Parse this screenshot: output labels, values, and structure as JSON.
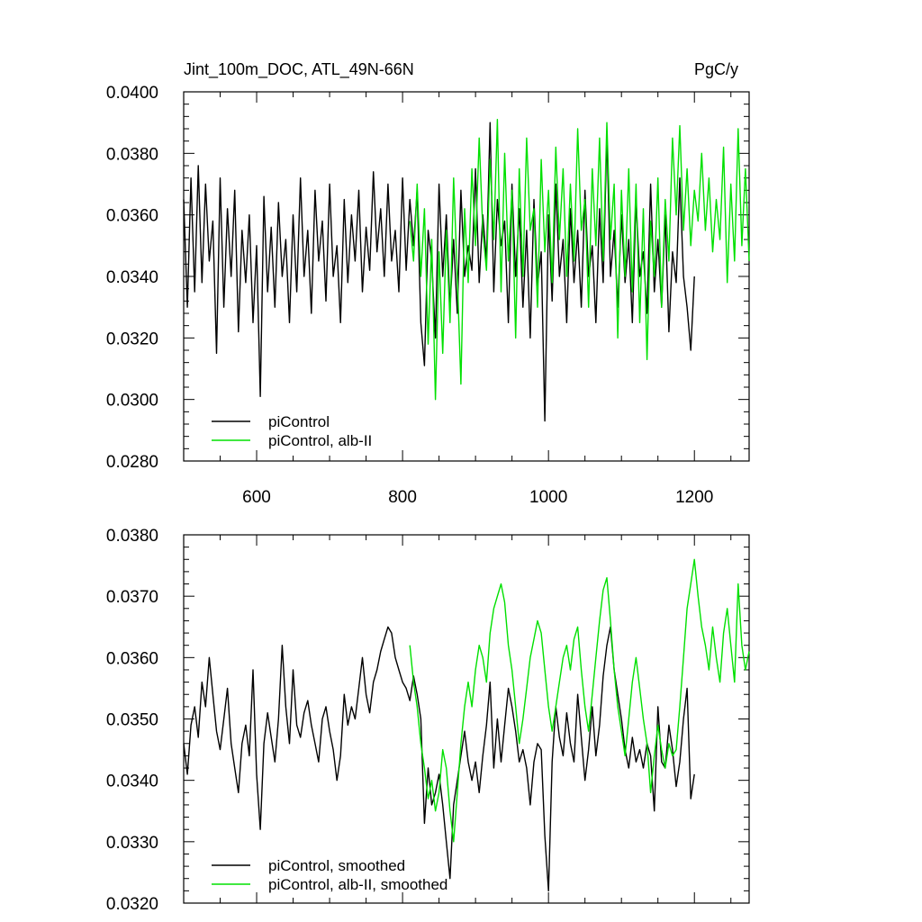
{
  "colors": {
    "control": "#000000",
    "alb": "#00e000"
  },
  "chart_data": [
    {
      "type": "line",
      "title": "Jint_100m_DOC, ATL_49N-66N",
      "unit_label": "PgC/y",
      "xlim": [
        500,
        1275
      ],
      "ylim": [
        0.028,
        0.04
      ],
      "x_ticks": [
        600,
        800,
        1000,
        1200
      ],
      "x_tick_labels": [
        "600",
        "800",
        "1000",
        "1200"
      ],
      "y_ticks": [
        0.028,
        0.03,
        0.032,
        0.034,
        0.036,
        0.038,
        0.04
      ],
      "y_tick_labels": [
        "0.0280",
        "0.0300",
        "0.0320",
        "0.0340",
        "0.0360",
        "0.0380",
        "0.0400"
      ],
      "legend": [
        "piControl",
        "piControl, alb-II"
      ],
      "series": [
        {
          "name": "piControl",
          "color": "#000000",
          "x": [
            500,
            505,
            510,
            515,
            520,
            525,
            530,
            535,
            540,
            545,
            550,
            555,
            560,
            565,
            570,
            575,
            580,
            585,
            590,
            595,
            600,
            605,
            610,
            615,
            620,
            625,
            630,
            635,
            640,
            645,
            650,
            655,
            660,
            665,
            670,
            675,
            680,
            685,
            690,
            695,
            700,
            705,
            710,
            715,
            720,
            725,
            730,
            735,
            740,
            745,
            750,
            755,
            760,
            765,
            770,
            775,
            780,
            785,
            790,
            795,
            800,
            805,
            810,
            815,
            820,
            825,
            830,
            835,
            840,
            845,
            850,
            855,
            860,
            865,
            870,
            875,
            880,
            885,
            890,
            895,
            900,
            905,
            910,
            915,
            920,
            925,
            930,
            935,
            940,
            945,
            950,
            955,
            960,
            965,
            970,
            975,
            980,
            985,
            990,
            995,
            1000,
            1005,
            1010,
            1015,
            1020,
            1025,
            1030,
            1035,
            1040,
            1045,
            1050,
            1055,
            1060,
            1065,
            1070,
            1075,
            1080,
            1085,
            1090,
            1095,
            1100,
            1105,
            1110,
            1115,
            1120,
            1125,
            1130,
            1135,
            1140,
            1145,
            1150,
            1155,
            1160,
            1165,
            1170,
            1175,
            1180,
            1185,
            1190,
            1195,
            1200
          ],
          "y": [
            0.0365,
            0.033,
            0.0372,
            0.0335,
            0.0376,
            0.0338,
            0.037,
            0.0345,
            0.0358,
            0.0315,
            0.0372,
            0.033,
            0.0362,
            0.034,
            0.0368,
            0.0322,
            0.0355,
            0.0338,
            0.036,
            0.0325,
            0.035,
            0.0301,
            0.0366,
            0.0335,
            0.0356,
            0.033,
            0.0364,
            0.034,
            0.0352,
            0.0325,
            0.036,
            0.0335,
            0.0372,
            0.034,
            0.0355,
            0.0328,
            0.0368,
            0.0345,
            0.0358,
            0.0332,
            0.037,
            0.034,
            0.035,
            0.0325,
            0.0365,
            0.0338,
            0.036,
            0.0345,
            0.0368,
            0.0335,
            0.0356,
            0.0342,
            0.0374,
            0.0348,
            0.0362,
            0.034,
            0.037,
            0.0345,
            0.0355,
            0.0335,
            0.0372,
            0.0342,
            0.0365,
            0.035,
            0.0368,
            0.0325,
            0.0311,
            0.0355,
            0.0345,
            0.032,
            0.037,
            0.034,
            0.036,
            0.033,
            0.0352,
            0.0328,
            0.0368,
            0.034,
            0.035,
            0.0342,
            0.0375,
            0.0338,
            0.036,
            0.0345,
            0.039,
            0.0335,
            0.0365,
            0.035,
            0.0358,
            0.0325,
            0.037,
            0.034,
            0.0362,
            0.033,
            0.0355,
            0.032,
            0.0365,
            0.0337,
            0.0348,
            0.0293,
            0.036,
            0.0332,
            0.037,
            0.034,
            0.0352,
            0.0325,
            0.0362,
            0.0338,
            0.0355,
            0.033,
            0.0368,
            0.034,
            0.035,
            0.0325,
            0.0362,
            0.0338,
            0.0386,
            0.034,
            0.0355,
            0.033,
            0.036,
            0.0338,
            0.0352,
            0.0325,
            0.0365,
            0.034,
            0.0348,
            0.0328,
            0.037,
            0.0335,
            0.0352,
            0.033,
            0.036,
            0.0322,
            0.0348,
            0.0338,
            0.0372,
            0.034,
            0.033,
            0.0316,
            0.034
          ]
        },
        {
          "name": "piControl, alb-II",
          "color": "#00e000",
          "x": [
            810,
            815,
            820,
            825,
            830,
            835,
            840,
            845,
            850,
            855,
            860,
            865,
            870,
            875,
            880,
            885,
            890,
            895,
            900,
            905,
            910,
            915,
            920,
            925,
            930,
            935,
            940,
            945,
            950,
            955,
            960,
            965,
            970,
            975,
            980,
            985,
            990,
            995,
            1000,
            1005,
            1010,
            1015,
            1020,
            1025,
            1030,
            1035,
            1040,
            1045,
            1050,
            1055,
            1060,
            1065,
            1070,
            1075,
            1080,
            1085,
            1090,
            1095,
            1100,
            1105,
            1110,
            1115,
            1120,
            1125,
            1130,
            1135,
            1140,
            1145,
            1150,
            1155,
            1160,
            1165,
            1170,
            1175,
            1180,
            1185,
            1190,
            1195,
            1200,
            1205,
            1210,
            1215,
            1220,
            1225,
            1230,
            1235,
            1240,
            1245,
            1250,
            1255,
            1260,
            1265,
            1270,
            1275
          ],
          "y": [
            0.0358,
            0.0345,
            0.037,
            0.034,
            0.0362,
            0.0318,
            0.0352,
            0.03,
            0.0348,
            0.0315,
            0.0355,
            0.0325,
            0.0372,
            0.034,
            0.0305,
            0.0362,
            0.0338,
            0.0375,
            0.035,
            0.0385,
            0.0355,
            0.0342,
            0.0378,
            0.0352,
            0.0391,
            0.0335,
            0.038,
            0.0345,
            0.0368,
            0.032,
            0.0375,
            0.034,
            0.0385,
            0.0355,
            0.0362,
            0.033,
            0.0378,
            0.0348,
            0.0368,
            0.0338,
            0.0382,
            0.0352,
            0.0375,
            0.034,
            0.037,
            0.0345,
            0.0388,
            0.0355,
            0.0365,
            0.033,
            0.0375,
            0.035,
            0.0385,
            0.0345,
            0.039,
            0.0352,
            0.037,
            0.032,
            0.0368,
            0.034,
            0.0375,
            0.0335,
            0.037,
            0.0325,
            0.0362,
            0.0313,
            0.0358,
            0.034,
            0.0372,
            0.033,
            0.0365,
            0.0345,
            0.0385,
            0.036,
            0.0389,
            0.0355,
            0.0375,
            0.035,
            0.0368,
            0.0358,
            0.038,
            0.0355,
            0.0372,
            0.0348,
            0.0365,
            0.0352,
            0.0382,
            0.0338,
            0.037,
            0.0345,
            0.0388,
            0.035,
            0.0375,
            0.0345
          ]
        }
      ]
    },
    {
      "type": "line",
      "xlim": [
        500,
        1275
      ],
      "ylim": [
        0.032,
        0.038
      ],
      "x_ticks": [
        600,
        800,
        1000,
        1200
      ],
      "y_ticks": [
        0.032,
        0.033,
        0.034,
        0.035,
        0.036,
        0.037,
        0.038
      ],
      "y_tick_labels": [
        "0.0320",
        "0.0330",
        "0.0340",
        "0.0350",
        "0.0360",
        "0.0370",
        "0.0380"
      ],
      "legend": [
        "piControl, smoothed",
        "piControl, alb-II, smoothed"
      ],
      "series": [
        {
          "name": "piControl, smoothed",
          "color": "#000000",
          "x": [
            500,
            505,
            510,
            515,
            520,
            525,
            530,
            535,
            540,
            545,
            550,
            555,
            560,
            565,
            570,
            575,
            580,
            585,
            590,
            595,
            600,
            605,
            610,
            615,
            620,
            625,
            630,
            635,
            640,
            645,
            650,
            655,
            660,
            665,
            670,
            675,
            680,
            685,
            690,
            695,
            700,
            705,
            710,
            715,
            720,
            725,
            730,
            735,
            740,
            745,
            750,
            755,
            760,
            765,
            770,
            775,
            780,
            785,
            790,
            795,
            800,
            805,
            810,
            815,
            820,
            825,
            830,
            835,
            840,
            845,
            850,
            855,
            860,
            865,
            870,
            875,
            880,
            885,
            890,
            895,
            900,
            905,
            910,
            915,
            920,
            925,
            930,
            935,
            940,
            945,
            950,
            955,
            960,
            965,
            970,
            975,
            980,
            985,
            990,
            995,
            1000,
            1005,
            1010,
            1015,
            1020,
            1025,
            1030,
            1035,
            1040,
            1045,
            1050,
            1055,
            1060,
            1065,
            1070,
            1075,
            1080,
            1085,
            1090,
            1095,
            1100,
            1105,
            1110,
            1115,
            1120,
            1125,
            1130,
            1135,
            1140,
            1145,
            1150,
            1155,
            1160,
            1165,
            1170,
            1175,
            1180,
            1185,
            1190,
            1195,
            1200
          ],
          "y": [
            0.0346,
            0.0341,
            0.0349,
            0.0352,
            0.0347,
            0.0356,
            0.0352,
            0.036,
            0.0354,
            0.0348,
            0.0345,
            0.035,
            0.0355,
            0.0346,
            0.0342,
            0.0338,
            0.0346,
            0.0349,
            0.0344,
            0.0358,
            0.0341,
            0.0332,
            0.0346,
            0.0351,
            0.0347,
            0.0343,
            0.035,
            0.0362,
            0.0352,
            0.0346,
            0.0358,
            0.0349,
            0.0347,
            0.0351,
            0.0353,
            0.0349,
            0.0346,
            0.0343,
            0.035,
            0.0352,
            0.0348,
            0.0345,
            0.034,
            0.0344,
            0.0354,
            0.0349,
            0.0352,
            0.035,
            0.0355,
            0.036,
            0.0354,
            0.0351,
            0.0356,
            0.0358,
            0.0361,
            0.0363,
            0.0365,
            0.0364,
            0.036,
            0.0358,
            0.0356,
            0.0355,
            0.0353,
            0.0357,
            0.0354,
            0.035,
            0.0333,
            0.0342,
            0.0336,
            0.0338,
            0.0341,
            0.0336,
            0.033,
            0.0324,
            0.0336,
            0.034,
            0.0344,
            0.0348,
            0.0343,
            0.034,
            0.0343,
            0.0338,
            0.0344,
            0.0349,
            0.0356,
            0.0342,
            0.035,
            0.0343,
            0.0349,
            0.0355,
            0.0352,
            0.0348,
            0.0343,
            0.0345,
            0.0342,
            0.0336,
            0.0343,
            0.0346,
            0.0345,
            0.0331,
            0.0322,
            0.0343,
            0.0352,
            0.0347,
            0.0344,
            0.0351,
            0.0346,
            0.0343,
            0.0354,
            0.0347,
            0.034,
            0.0345,
            0.0352,
            0.0344,
            0.0349,
            0.0357,
            0.0362,
            0.0365,
            0.0358,
            0.0354,
            0.035,
            0.0345,
            0.0342,
            0.0347,
            0.0343,
            0.0345,
            0.0342,
            0.0346,
            0.0344,
            0.0335,
            0.0352,
            0.0343,
            0.0342,
            0.0349,
            0.0345,
            0.0339,
            0.0343,
            0.035,
            0.0355,
            0.0337,
            0.0341
          ]
        },
        {
          "name": "piControl, alb-II, smoothed",
          "color": "#00e000",
          "x": [
            810,
            815,
            820,
            825,
            830,
            835,
            840,
            845,
            850,
            855,
            860,
            865,
            870,
            875,
            880,
            885,
            890,
            895,
            900,
            905,
            910,
            915,
            920,
            925,
            930,
            935,
            940,
            945,
            950,
            955,
            960,
            965,
            970,
            975,
            980,
            985,
            990,
            995,
            1000,
            1005,
            1010,
            1015,
            1020,
            1025,
            1030,
            1035,
            1040,
            1045,
            1050,
            1055,
            1060,
            1065,
            1070,
            1075,
            1080,
            1085,
            1090,
            1095,
            1100,
            1105,
            1110,
            1115,
            1120,
            1125,
            1130,
            1135,
            1140,
            1145,
            1150,
            1155,
            1160,
            1165,
            1170,
            1175,
            1180,
            1185,
            1190,
            1195,
            1200,
            1205,
            1210,
            1215,
            1220,
            1225,
            1230,
            1235,
            1240,
            1245,
            1250,
            1255,
            1260,
            1265,
            1270,
            1275
          ],
          "y": [
            0.0362,
            0.0356,
            0.0352,
            0.0346,
            0.0342,
            0.0337,
            0.034,
            0.0335,
            0.0338,
            0.0345,
            0.0342,
            0.0335,
            0.033,
            0.0338,
            0.0346,
            0.0352,
            0.0356,
            0.0352,
            0.0358,
            0.0362,
            0.036,
            0.0356,
            0.0364,
            0.0368,
            0.037,
            0.0372,
            0.0369,
            0.0362,
            0.0358,
            0.0352,
            0.0346,
            0.035,
            0.0355,
            0.036,
            0.0363,
            0.0366,
            0.0364,
            0.0358,
            0.0352,
            0.0348,
            0.0352,
            0.0356,
            0.036,
            0.0362,
            0.0358,
            0.0363,
            0.0365,
            0.0358,
            0.0352,
            0.0348,
            0.0354,
            0.036,
            0.0366,
            0.0371,
            0.0373,
            0.0366,
            0.0358,
            0.0352,
            0.0348,
            0.0344,
            0.035,
            0.0356,
            0.036,
            0.0355,
            0.035,
            0.0346,
            0.0338,
            0.0344,
            0.0349,
            0.0345,
            0.0342,
            0.0346,
            0.0344,
            0.0345,
            0.0352,
            0.036,
            0.0368,
            0.0372,
            0.0376,
            0.037,
            0.0365,
            0.0362,
            0.0358,
            0.0365,
            0.036,
            0.0356,
            0.0364,
            0.0368,
            0.0362,
            0.0356,
            0.0372,
            0.0362,
            0.0358,
            0.0361
          ]
        }
      ]
    }
  ]
}
